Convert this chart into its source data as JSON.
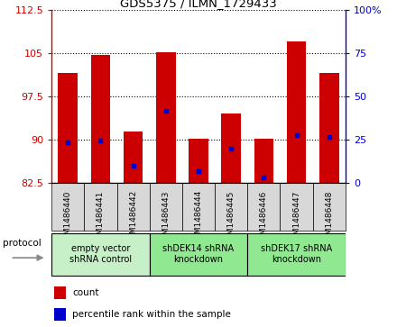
{
  "title": "GDS5375 / ILMN_1729433",
  "samples": [
    "GSM1486440",
    "GSM1486441",
    "GSM1486442",
    "GSM1486443",
    "GSM1486444",
    "GSM1486445",
    "GSM1486446",
    "GSM1486447",
    "GSM1486448"
  ],
  "bar_bottom": 82.5,
  "bar_tops": [
    101.5,
    104.7,
    91.5,
    105.2,
    90.2,
    94.5,
    90.2,
    107.0,
    101.5
  ],
  "percentile_values": [
    89.5,
    89.8,
    85.5,
    95.0,
    84.5,
    88.5,
    83.5,
    90.8,
    90.5
  ],
  "ylim_left": [
    82.5,
    112.5
  ],
  "ylim_right": [
    0,
    100
  ],
  "yticks_left": [
    82.5,
    90.0,
    97.5,
    105.0,
    112.5
  ],
  "yticklabels_left": [
    "82.5",
    "90",
    "97.5",
    "105",
    "112.5"
  ],
  "yticks_right": [
    0,
    25,
    50,
    75,
    100
  ],
  "yticklabels_right": [
    "0",
    "25",
    "50",
    "75",
    "100%"
  ],
  "groups": [
    {
      "label": "empty vector\nshRNA control",
      "start": 0,
      "end": 3,
      "color": "#c8f0c8"
    },
    {
      "label": "shDEK14 shRNA\nknockdown",
      "start": 3,
      "end": 6,
      "color": "#90e890"
    },
    {
      "label": "shDEK17 shRNA\nknockdown",
      "start": 6,
      "end": 9,
      "color": "#90e890"
    }
  ],
  "bar_color": "#cc0000",
  "percentile_color": "#0000cc",
  "bar_width": 0.6,
  "left_axis_color": "#cc0000",
  "right_axis_color": "#0000cc",
  "protocol_label": "protocol",
  "legend_items": [
    {
      "label": "count",
      "color": "#cc0000"
    },
    {
      "label": "percentile rank within the sample",
      "color": "#0000cc"
    }
  ],
  "tick_bg_color": "#d8d8d8"
}
